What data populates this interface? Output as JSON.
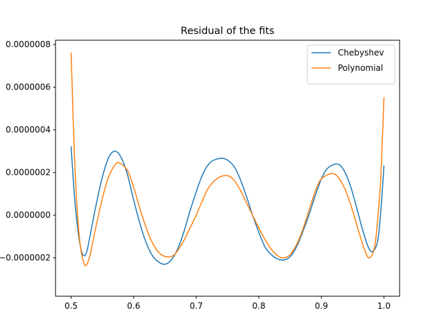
{
  "chart_data": {
    "type": "line",
    "title": "Residual of the fits",
    "xlabel": "",
    "ylabel": "",
    "xlim": [
      0.475,
      1.025
    ],
    "ylim": [
      -3.8e-07,
      8.2e-07
    ],
    "grid": false,
    "legend_position": "top-right",
    "x_ticks": [
      0.5,
      0.6,
      0.7,
      0.8,
      0.9,
      1.0
    ],
    "x_tick_labels": [
      "0.5",
      "0.6",
      "0.7",
      "0.8",
      "0.9",
      "1.0"
    ],
    "y_ticks": [
      -2e-07,
      0.0,
      2e-07,
      4e-07,
      6e-07,
      8e-07
    ],
    "y_tick_labels": [
      "−0.0000002",
      "0.0000000",
      "0.0000002",
      "0.0000004",
      "0.0000006",
      "0.0000008"
    ],
    "series": [
      {
        "name": "Chebyshev",
        "color": "#1f77b4",
        "x": [
          0.5,
          0.505,
          0.51,
          0.515,
          0.52,
          0.525,
          0.53,
          0.54,
          0.55,
          0.56,
          0.57,
          0.58,
          0.59,
          0.6,
          0.61,
          0.62,
          0.63,
          0.64,
          0.65,
          0.66,
          0.67,
          0.68,
          0.69,
          0.7,
          0.71,
          0.72,
          0.73,
          0.745,
          0.76,
          0.77,
          0.78,
          0.79,
          0.8,
          0.81,
          0.82,
          0.83,
          0.84,
          0.85,
          0.86,
          0.87,
          0.88,
          0.89,
          0.9,
          0.91,
          0.925,
          0.935,
          0.945,
          0.955,
          0.965,
          0.975,
          0.982,
          0.99,
          0.995,
          1.0
        ],
        "y": [
          3.2e-07,
          1e-07,
          -5e-08,
          -1.5e-07,
          -1.9e-07,
          -1.7e-07,
          -1e-07,
          5e-08,
          1.8e-07,
          2.7e-07,
          3e-07,
          2.7e-07,
          1.9e-07,
          7e-08,
          -4e-08,
          -1.3e-07,
          -1.9e-07,
          -2.2e-07,
          -2.3e-07,
          -2.1e-07,
          -1.6e-07,
          -8e-08,
          2e-08,
          1.1e-07,
          1.9e-07,
          2.4e-07,
          2.6e-07,
          2.65e-07,
          2.3e-07,
          1.7e-07,
          9e-08,
          0.0,
          -8e-08,
          -1.5e-07,
          -1.85e-07,
          -2.05e-07,
          -2.1e-07,
          -1.95e-07,
          -1.5e-07,
          -8e-08,
          0.0,
          9e-08,
          1.7e-07,
          2.2e-07,
          2.4e-07,
          2.15e-07,
          1.5e-07,
          5e-08,
          -6e-08,
          -1.5e-07,
          -1.7e-07,
          -1.2e-07,
          2e-08,
          2.3e-07
        ]
      },
      {
        "name": "Polynomial",
        "color": "#ff7f0e",
        "x": [
          0.5,
          0.505,
          0.51,
          0.515,
          0.52,
          0.524,
          0.53,
          0.54,
          0.55,
          0.56,
          0.57,
          0.577,
          0.59,
          0.6,
          0.61,
          0.62,
          0.63,
          0.64,
          0.652,
          0.665,
          0.68,
          0.69,
          0.7,
          0.71,
          0.72,
          0.735,
          0.75,
          0.76,
          0.77,
          0.78,
          0.79,
          0.8,
          0.81,
          0.82,
          0.83,
          0.84,
          0.85,
          0.86,
          0.87,
          0.88,
          0.89,
          0.9,
          0.918,
          0.93,
          0.94,
          0.95,
          0.96,
          0.97,
          0.977,
          0.985,
          0.99,
          0.995,
          1.0
        ],
        "y": [
          7.6e-07,
          3e-07,
          1e-08,
          -1.5e-07,
          -2.2e-07,
          -2.35e-07,
          -1.9e-07,
          -5e-08,
          8e-08,
          1.8e-07,
          2.35e-07,
          2.45e-07,
          2.1e-07,
          1.3e-07,
          3e-08,
          -6e-08,
          -1.3e-07,
          -1.75e-07,
          -1.95e-07,
          -1.85e-07,
          -1.2e-07,
          -6e-08,
          0.0,
          7e-08,
          1.3e-07,
          1.75e-07,
          1.85e-07,
          1.65e-07,
          1.2e-07,
          6e-08,
          0.0,
          -6e-08,
          -1.15e-07,
          -1.6e-07,
          -1.9e-07,
          -2e-07,
          -1.85e-07,
          -1.4e-07,
          -7e-08,
          2e-08,
          1.1e-07,
          1.7e-07,
          1.95e-07,
          1.65e-07,
          1.05e-07,
          2e-08,
          -8e-08,
          -1.7e-07,
          -2e-07,
          -1.5e-07,
          -2e-08,
          1.8e-07,
          5.5e-07
        ]
      }
    ]
  }
}
